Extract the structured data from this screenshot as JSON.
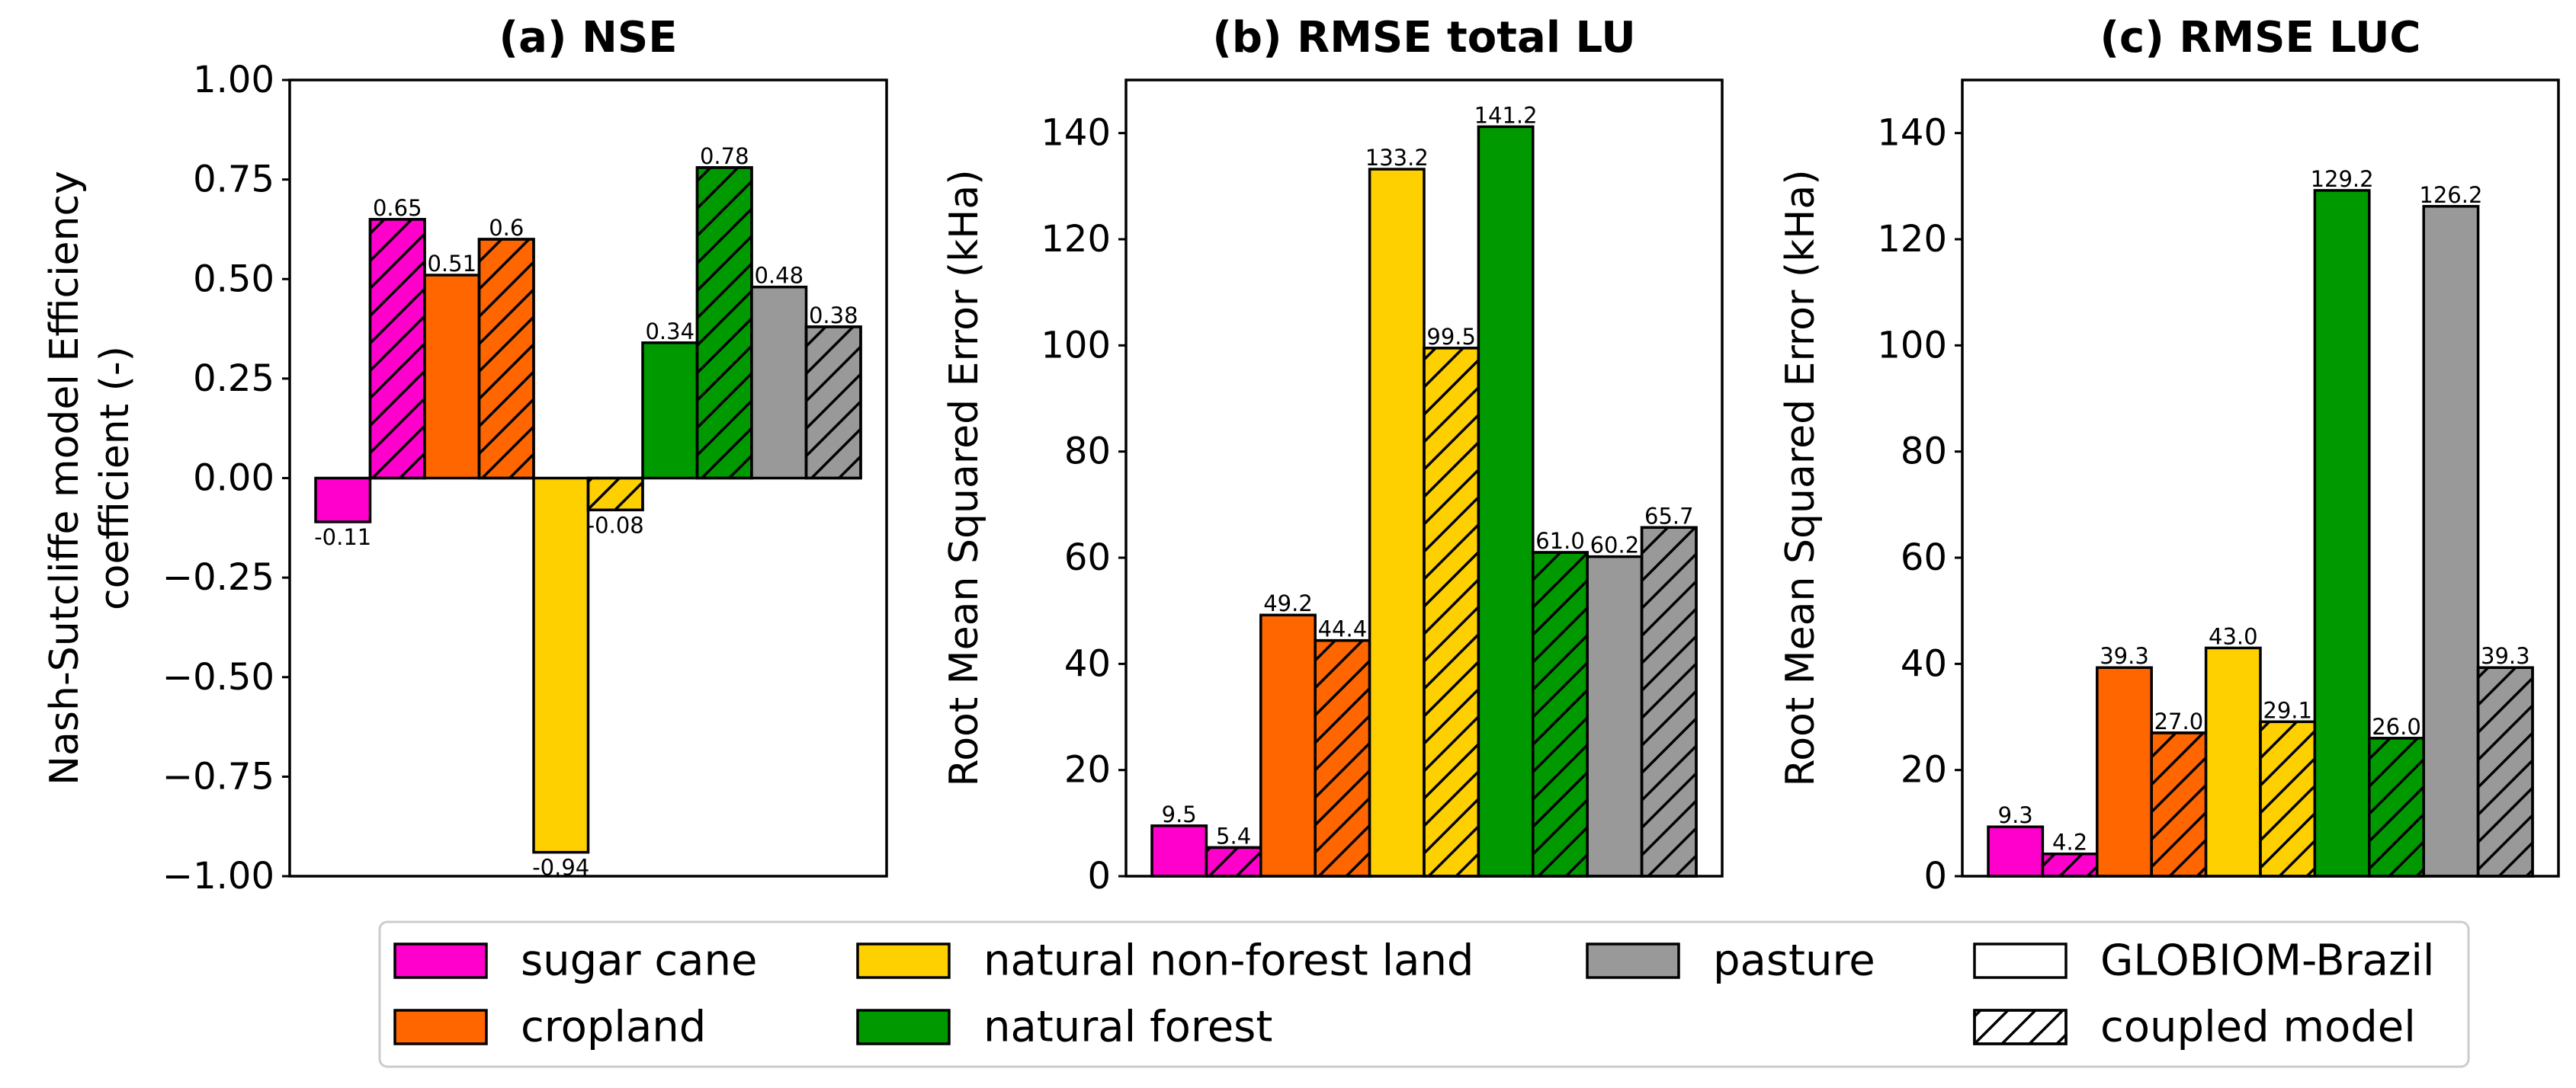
{
  "chart_data": [
    {
      "type": "bar",
      "title": "(a) NSE",
      "ylabel": [
        "Nash-Sutcliffe model Efficiency",
        "coefficient (-)"
      ],
      "ylim": [
        -1.0,
        1.0
      ],
      "yticks": [
        -1.0,
        -0.75,
        -0.5,
        -0.25,
        0.0,
        0.25,
        0.5,
        0.75,
        1.0
      ],
      "ytick_labels": [
        "−1.00",
        "−0.75",
        "−0.50",
        "−0.25",
        "0.00",
        "0.25",
        "0.50",
        "0.75",
        "1.00"
      ],
      "grid": false,
      "bars": [
        {
          "category": "sugar cane",
          "model": "GLOBIOM-Brazil",
          "value": -0.11,
          "label": "-0.11"
        },
        {
          "category": "sugar cane",
          "model": "coupled model",
          "value": 0.65,
          "label": "0.65"
        },
        {
          "category": "cropland",
          "model": "GLOBIOM-Brazil",
          "value": 0.51,
          "label": "0.51"
        },
        {
          "category": "cropland",
          "model": "coupled model",
          "value": 0.6,
          "label": "0.6"
        },
        {
          "category": "natural non-forest land",
          "model": "GLOBIOM-Brazil",
          "value": -0.94,
          "label": "-0.94"
        },
        {
          "category": "natural non-forest land",
          "model": "coupled model",
          "value": -0.08,
          "label": "-0.08"
        },
        {
          "category": "natural forest",
          "model": "GLOBIOM-Brazil",
          "value": 0.34,
          "label": "0.34"
        },
        {
          "category": "natural forest",
          "model": "coupled model",
          "value": 0.78,
          "label": "0.78"
        },
        {
          "category": "pasture",
          "model": "GLOBIOM-Brazil",
          "value": 0.48,
          "label": "0.48"
        },
        {
          "category": "pasture",
          "model": "coupled model",
          "value": 0.38,
          "label": "0.38"
        }
      ]
    },
    {
      "type": "bar",
      "title": "(b) RMSE total LU",
      "ylabel": [
        "Root Mean Squared Error (kHa)"
      ],
      "ylim": [
        0,
        150
      ],
      "yticks": [
        0,
        20,
        40,
        60,
        80,
        100,
        120,
        140
      ],
      "ytick_labels": [
        "0",
        "20",
        "40",
        "60",
        "80",
        "100",
        "120",
        "140"
      ],
      "grid": false,
      "bars": [
        {
          "category": "sugar cane",
          "model": "GLOBIOM-Brazil",
          "value": 9.5,
          "label": "9.5"
        },
        {
          "category": "sugar cane",
          "model": "coupled model",
          "value": 5.4,
          "label": "5.4"
        },
        {
          "category": "cropland",
          "model": "GLOBIOM-Brazil",
          "value": 49.2,
          "label": "49.2"
        },
        {
          "category": "cropland",
          "model": "coupled model",
          "value": 44.4,
          "label": "44.4"
        },
        {
          "category": "natural non-forest land",
          "model": "GLOBIOM-Brazil",
          "value": 133.2,
          "label": "133.2"
        },
        {
          "category": "natural non-forest land",
          "model": "coupled model",
          "value": 99.5,
          "label": "99.5"
        },
        {
          "category": "natural forest",
          "model": "GLOBIOM-Brazil",
          "value": 141.2,
          "label": "141.2"
        },
        {
          "category": "natural forest",
          "model": "coupled model",
          "value": 61.0,
          "label": "61.0"
        },
        {
          "category": "pasture",
          "model": "GLOBIOM-Brazil",
          "value": 60.2,
          "label": "60.2"
        },
        {
          "category": "pasture",
          "model": "coupled model",
          "value": 65.7,
          "label": "65.7"
        }
      ]
    },
    {
      "type": "bar",
      "title": "(c) RMSE LUC",
      "ylabel": [
        "Root Mean Squared Error (kHa)"
      ],
      "ylim": [
        0,
        150
      ],
      "yticks": [
        0,
        20,
        40,
        60,
        80,
        100,
        120,
        140
      ],
      "ytick_labels": [
        "0",
        "20",
        "40",
        "60",
        "80",
        "100",
        "120",
        "140"
      ],
      "grid": false,
      "bars": [
        {
          "category": "sugar cane",
          "model": "GLOBIOM-Brazil",
          "value": 9.3,
          "label": "9.3"
        },
        {
          "category": "sugar cane",
          "model": "coupled model",
          "value": 4.2,
          "label": "4.2"
        },
        {
          "category": "cropland",
          "model": "GLOBIOM-Brazil",
          "value": 39.3,
          "label": "39.3"
        },
        {
          "category": "cropland",
          "model": "coupled model",
          "value": 27.0,
          "label": "27.0"
        },
        {
          "category": "natural non-forest land",
          "model": "GLOBIOM-Brazil",
          "value": 43.0,
          "label": "43.0"
        },
        {
          "category": "natural non-forest land",
          "model": "coupled model",
          "value": 29.1,
          "label": "29.1"
        },
        {
          "category": "natural forest",
          "model": "GLOBIOM-Brazil",
          "value": 129.2,
          "label": "129.2"
        },
        {
          "category": "natural forest",
          "model": "coupled model",
          "value": 26.0,
          "label": "26.0"
        },
        {
          "category": "pasture",
          "model": "GLOBIOM-Brazil",
          "value": 126.2,
          "label": "126.2"
        },
        {
          "category": "pasture",
          "model": "coupled model",
          "value": 39.3,
          "label": "39.3"
        }
      ]
    }
  ],
  "colors": {
    "sugar cane": "#ff00cc",
    "cropland": "#ff6600",
    "natural non-forest land": "#ffd000",
    "natural forest": "#009900",
    "pasture": "#999999",
    "edge": "#000000"
  },
  "legend": {
    "placement": "bottom-center",
    "items": [
      {
        "label": "sugar cane",
        "kind": "category"
      },
      {
        "label": "cropland",
        "kind": "category"
      },
      {
        "label": "natural non-forest land",
        "kind": "category"
      },
      {
        "label": "natural forest",
        "kind": "category"
      },
      {
        "label": "pasture",
        "kind": "category"
      },
      {
        "label": "GLOBIOM-Brazil",
        "kind": "model-plain"
      },
      {
        "label": "coupled model",
        "kind": "model-hatched"
      }
    ]
  }
}
